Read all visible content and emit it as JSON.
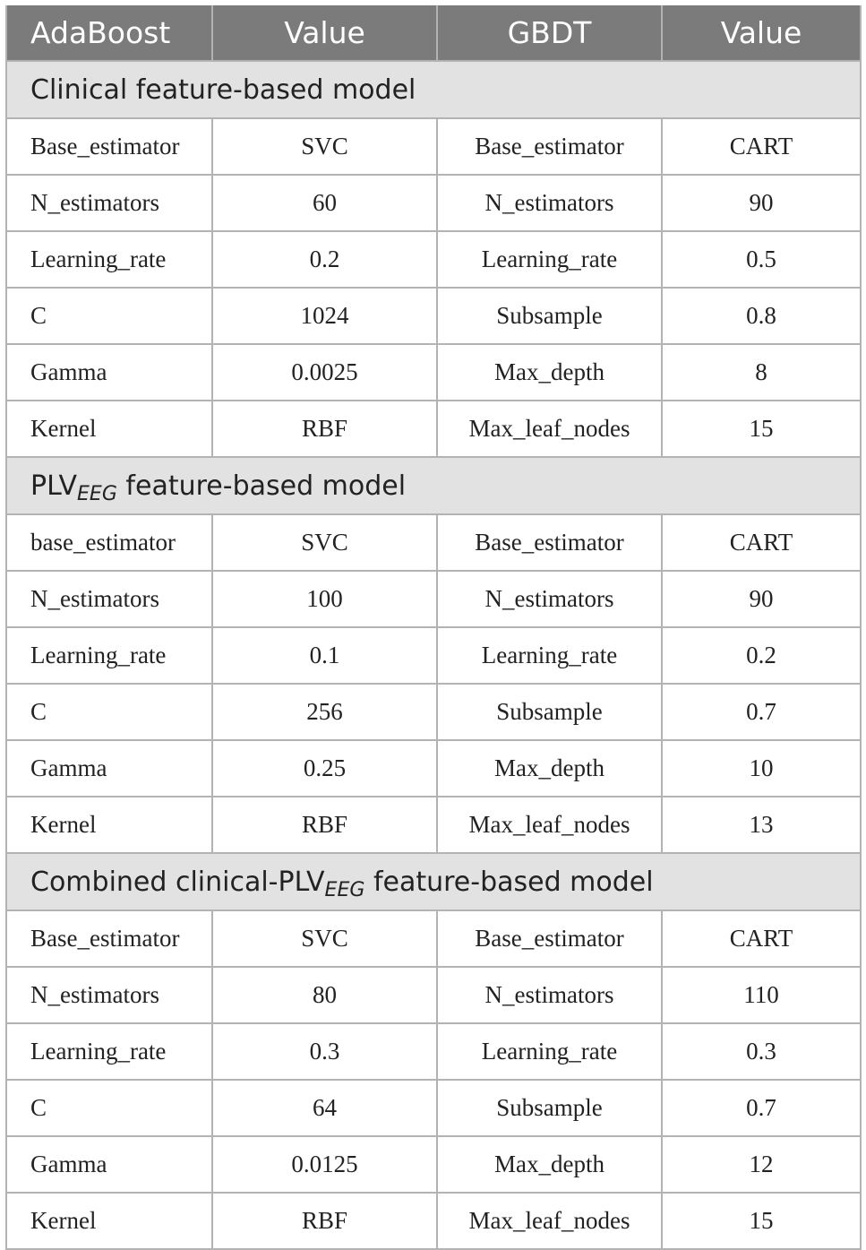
{
  "header": {
    "col1": "AdaBoost",
    "col2": "Value",
    "col3": "GBDT",
    "col4": "Value"
  },
  "sections": [
    {
      "title_main": "Clinical feature-based model",
      "title_sub": "",
      "title_suffix": "",
      "rows": [
        {
          "ada_param": "Base_estimator",
          "ada_value": "SVC",
          "gbdt_param": "Base_estimator",
          "gbdt_value": "CART"
        },
        {
          "ada_param": "N_estimators",
          "ada_value": "60",
          "gbdt_param": "N_estimators",
          "gbdt_value": "90"
        },
        {
          "ada_param": "Learning_rate",
          "ada_value": "0.2",
          "gbdt_param": "Learning_rate",
          "gbdt_value": "0.5"
        },
        {
          "ada_param": "C",
          "ada_value": "1024",
          "gbdt_param": "Subsample",
          "gbdt_value": "0.8"
        },
        {
          "ada_param": "Gamma",
          "ada_value": "0.0025",
          "gbdt_param": "Max_depth",
          "gbdt_value": "8"
        },
        {
          "ada_param": "Kernel",
          "ada_value": "RBF",
          "gbdt_param": "Max_leaf_nodes",
          "gbdt_value": "15"
        }
      ]
    },
    {
      "title_main": "PLV",
      "title_sub": "EEG",
      "title_suffix": " feature-based model",
      "rows": [
        {
          "ada_param": "base_estimator",
          "ada_value": "SVC",
          "gbdt_param": "Base_estimator",
          "gbdt_value": "CART"
        },
        {
          "ada_param": "N_estimators",
          "ada_value": "100",
          "gbdt_param": "N_estimators",
          "gbdt_value": "90"
        },
        {
          "ada_param": "Learning_rate",
          "ada_value": "0.1",
          "gbdt_param": "Learning_rate",
          "gbdt_value": "0.2"
        },
        {
          "ada_param": "C",
          "ada_value": "256",
          "gbdt_param": "Subsample",
          "gbdt_value": "0.7"
        },
        {
          "ada_param": "Gamma",
          "ada_value": "0.25",
          "gbdt_param": "Max_depth",
          "gbdt_value": "10"
        },
        {
          "ada_param": "Kernel",
          "ada_value": "RBF",
          "gbdt_param": "Max_leaf_nodes",
          "gbdt_value": "13"
        }
      ]
    },
    {
      "title_main": "Combined clinical-PLV",
      "title_sub": "EEG",
      "title_suffix": " feature-based model",
      "rows": [
        {
          "ada_param": "Base_estimator",
          "ada_value": "SVC",
          "gbdt_param": "Base_estimator",
          "gbdt_value": "CART"
        },
        {
          "ada_param": "N_estimators",
          "ada_value": "80",
          "gbdt_param": "N_estimators",
          "gbdt_value": "110"
        },
        {
          "ada_param": "Learning_rate",
          "ada_value": "0.3",
          "gbdt_param": "Learning_rate",
          "gbdt_value": "0.3"
        },
        {
          "ada_param": "C",
          "ada_value": "64",
          "gbdt_param": "Subsample",
          "gbdt_value": "0.7"
        },
        {
          "ada_param": "Gamma",
          "ada_value": "0.0125",
          "gbdt_param": "Max_depth",
          "gbdt_value": "12"
        },
        {
          "ada_param": "Kernel",
          "ada_value": "RBF",
          "gbdt_param": "Max_leaf_nodes",
          "gbdt_value": "15"
        }
      ]
    }
  ]
}
